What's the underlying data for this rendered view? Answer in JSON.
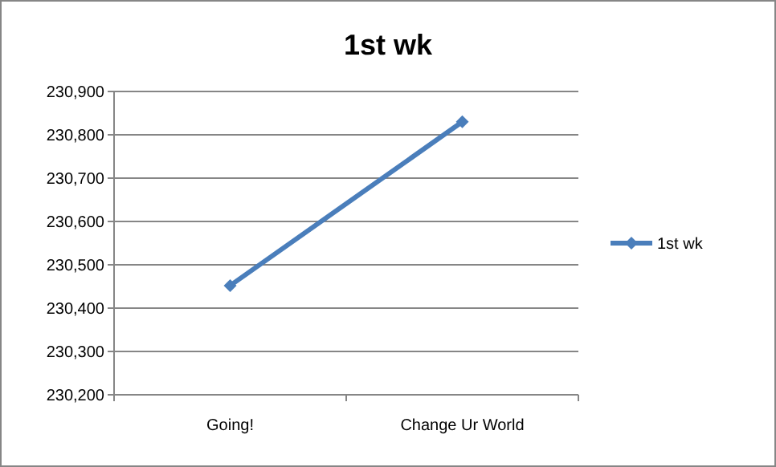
{
  "chart_data": {
    "type": "line",
    "title": "1st wk",
    "categories": [
      "Going!",
      "Change Ur World"
    ],
    "series": [
      {
        "name": "1st wk",
        "color": "#4a7ebb",
        "values": [
          230452,
          230830
        ]
      }
    ],
    "ylim": [
      230200,
      230900
    ],
    "yticks": [
      {
        "value": 230200,
        "label": "230,200"
      },
      {
        "value": 230300,
        "label": "230,300"
      },
      {
        "value": 230400,
        "label": "230,400"
      },
      {
        "value": 230500,
        "label": "230,500"
      },
      {
        "value": 230600,
        "label": "230,600"
      },
      {
        "value": 230700,
        "label": "230,700"
      },
      {
        "value": 230800,
        "label": "230,800"
      },
      {
        "value": 230900,
        "label": "230,900"
      }
    ],
    "grid": "y",
    "legend": "right",
    "marker": "diamond",
    "line_style": "solid"
  }
}
